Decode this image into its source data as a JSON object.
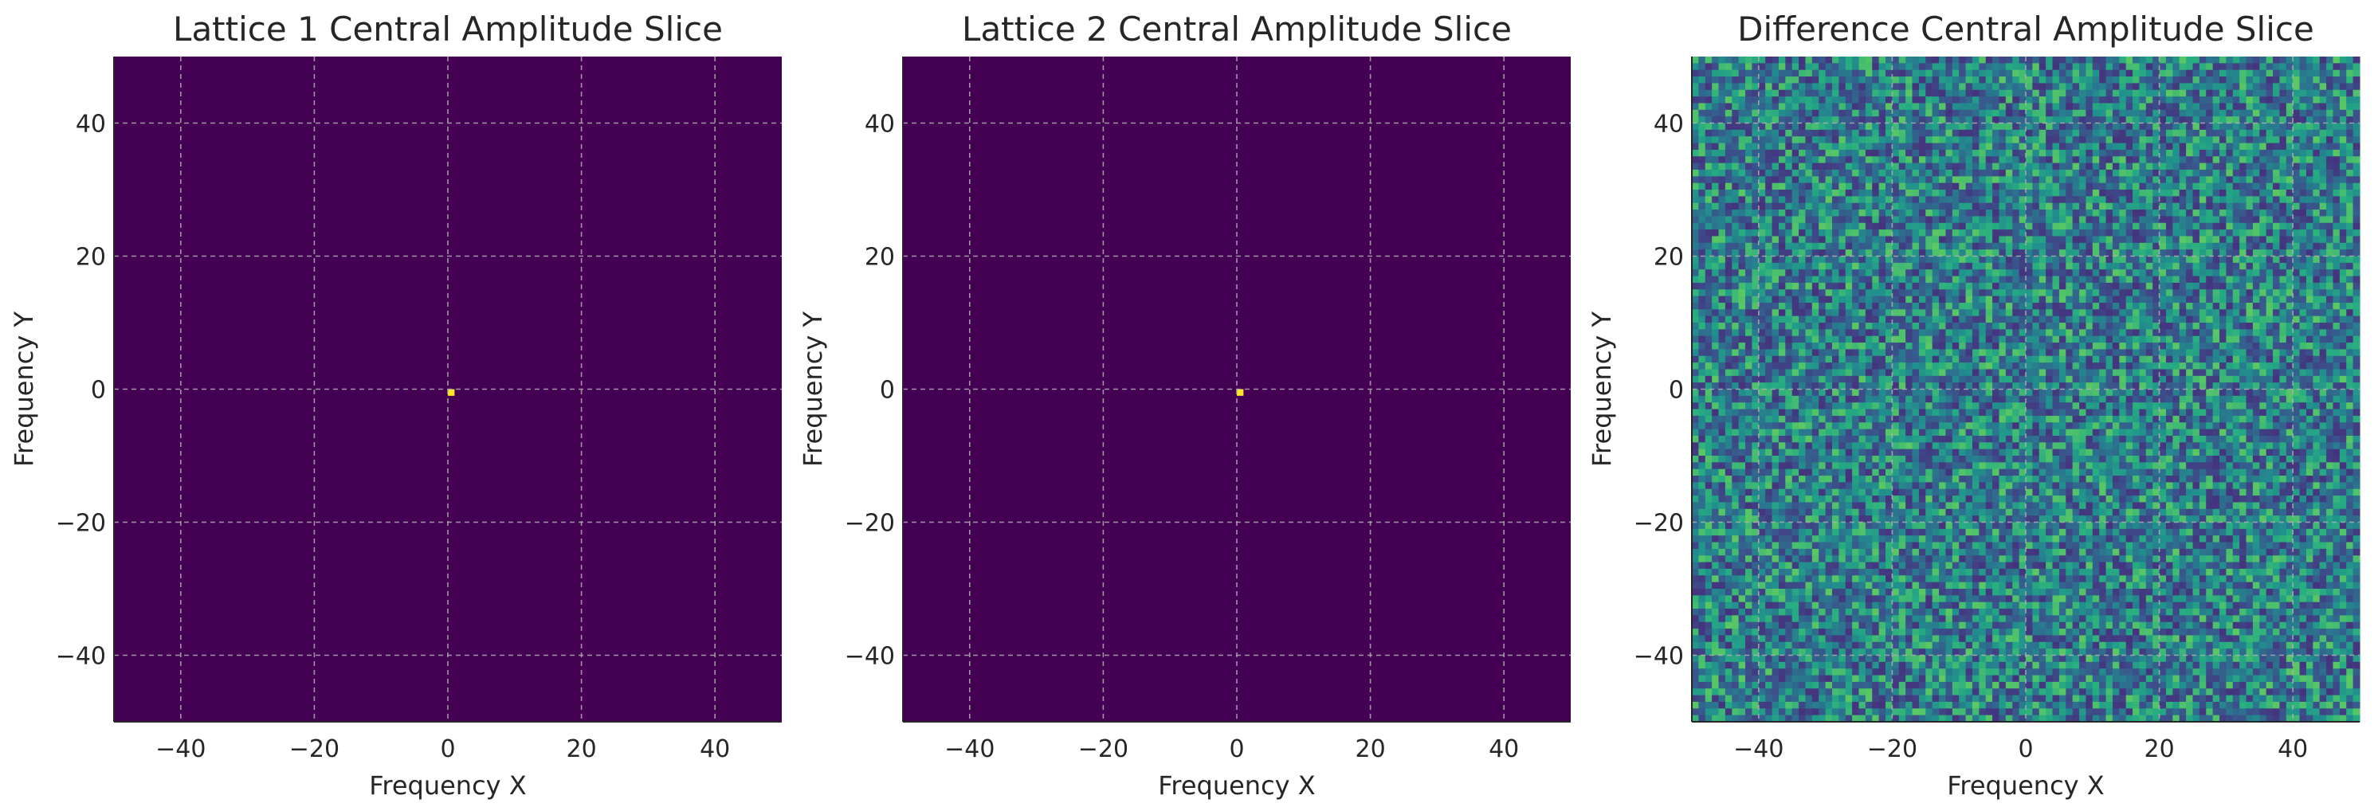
{
  "chart_data": [
    {
      "type": "heatmap",
      "title": "Lattice 1 Central Amplitude Slice",
      "xlabel": "Frequency X",
      "ylabel": "Frequency Y",
      "xlim": [
        -50,
        50
      ],
      "ylim": [
        -50,
        50
      ],
      "xticks": [
        -40,
        -20,
        0,
        20,
        40
      ],
      "yticks": [
        -40,
        -20,
        0,
        20,
        40
      ],
      "grid": true,
      "colormap": "viridis",
      "grid_size": 100,
      "pattern": "single peak at center, near-zero elsewhere",
      "peak": {
        "x": 0,
        "y": 0,
        "value": 1.0
      },
      "background_value": 0.0
    },
    {
      "type": "heatmap",
      "title": "Lattice 2 Central Amplitude Slice",
      "xlabel": "Frequency X",
      "ylabel": "Frequency Y",
      "xlim": [
        -50,
        50
      ],
      "ylim": [
        -50,
        50
      ],
      "xticks": [
        -40,
        -20,
        0,
        20,
        40
      ],
      "yticks": [
        -40,
        -20,
        0,
        20,
        40
      ],
      "grid": true,
      "colormap": "viridis",
      "grid_size": 100,
      "pattern": "single peak at center, near-zero elsewhere",
      "peak": {
        "x": 0,
        "y": 0,
        "value": 1.0
      },
      "background_value": 0.0
    },
    {
      "type": "heatmap",
      "title": "Difference Central Amplitude Slice",
      "xlabel": "Frequency X",
      "ylabel": "Frequency Y",
      "xlim": [
        -50,
        50
      ],
      "ylim": [
        -50,
        50
      ],
      "xticks": [
        -40,
        -20,
        0,
        20,
        40
      ],
      "yticks": [
        -40,
        -20,
        0,
        20,
        40
      ],
      "grid": true,
      "colormap": "viridis",
      "grid_size": 100,
      "pattern": "random noise across full plane",
      "value_range": [
        0,
        1
      ]
    }
  ],
  "colors": {
    "viridis_low": "#440154",
    "viridis_high": "#fde725",
    "grid": "#b0b0b0",
    "text": "#262626"
  }
}
